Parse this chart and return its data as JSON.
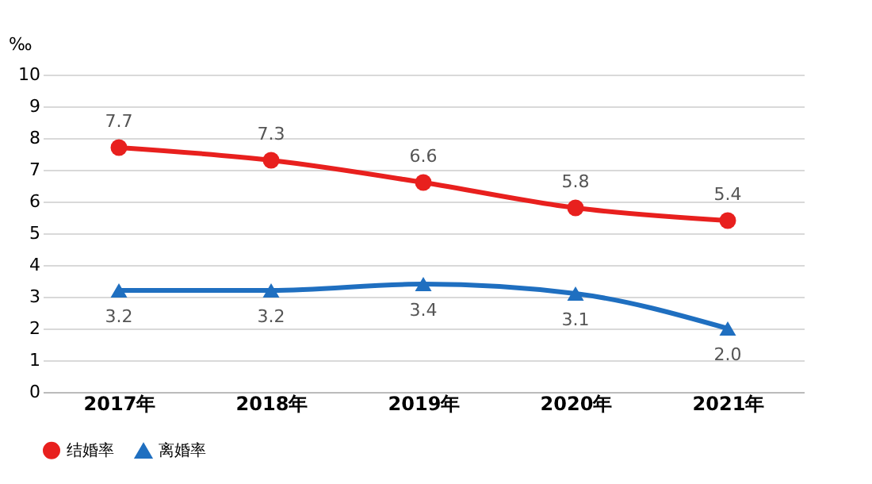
{
  "chart_data": {
    "type": "line",
    "ylabel": "‰",
    "categories": [
      "2017年",
      "2018年",
      "2019年",
      "2020年",
      "2021年"
    ],
    "series": [
      {
        "name": "结婚率",
        "color": "#e8201e",
        "marker": "circle",
        "values": [
          7.7,
          7.3,
          6.6,
          5.8,
          5.4
        ],
        "value_labels": [
          "7.7",
          "7.3",
          "6.6",
          "5.8",
          "5.4"
        ]
      },
      {
        "name": "离婚率",
        "color": "#1f6fc0",
        "marker": "triangle",
        "values": [
          3.2,
          3.2,
          3.4,
          3.1,
          2.0
        ],
        "value_labels": [
          "3.2",
          "3.2",
          "3.4",
          "3.1",
          "2.0"
        ]
      }
    ],
    "ylim": [
      0,
      10
    ],
    "yticks": [
      0,
      1,
      2,
      3,
      4,
      5,
      6,
      7,
      8,
      9,
      10
    ],
    "grid": "y",
    "legend": "bottom",
    "line_style": "solid"
  }
}
